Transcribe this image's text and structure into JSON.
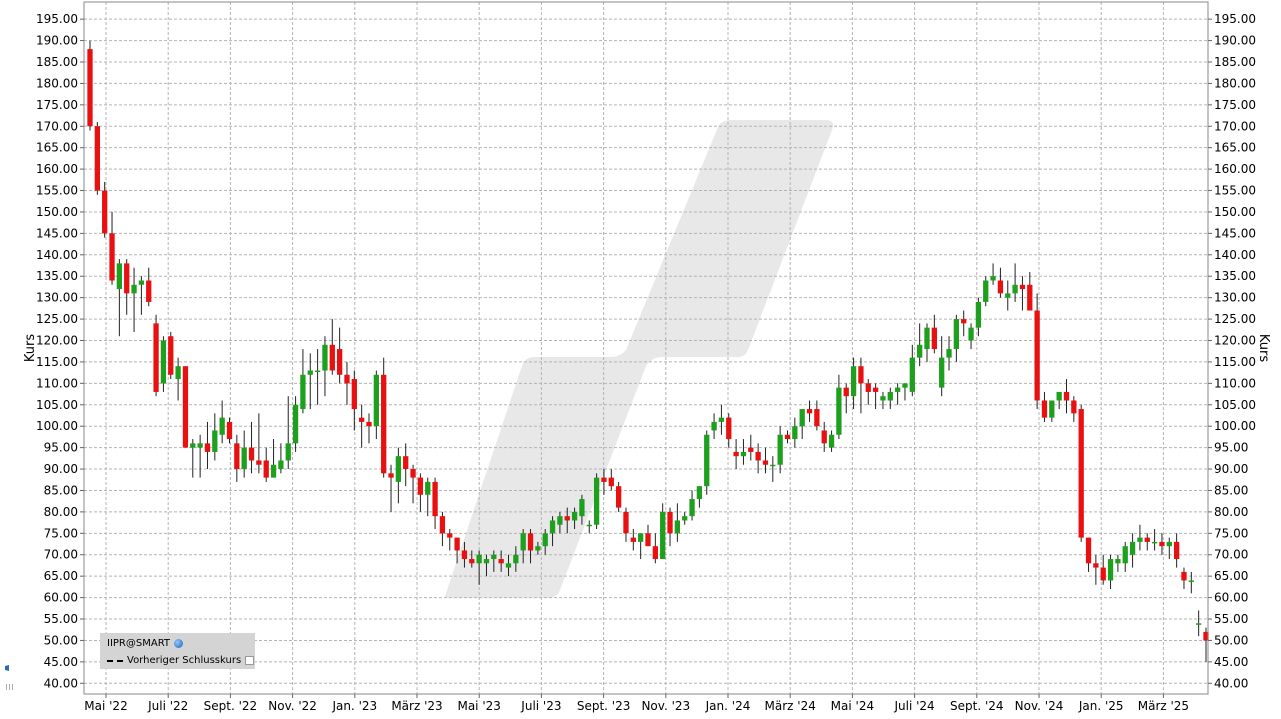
{
  "chart_data": {
    "type": "candlestick",
    "ylabel": "Kurs",
    "ylim": [
      37.5,
      199.0
    ],
    "y_ticks": [
      40,
      45,
      50,
      55,
      60,
      65,
      70,
      75,
      80,
      85,
      90,
      95,
      100,
      105,
      110,
      115,
      120,
      125,
      130,
      135,
      140,
      145,
      150,
      155,
      160,
      165,
      170,
      175,
      180,
      185,
      190,
      195
    ],
    "x_tick_labels": [
      "Mai '22",
      "Juli '22",
      "Sept. '22",
      "Nov. '22",
      "Jan. '23",
      "März '23",
      "Mai '23",
      "Juli '23",
      "Sept. '23",
      "Nov. '23",
      "Jan. '24",
      "März '24",
      "Mai '24",
      "Juli '24",
      "Sept. '24",
      "Nov. '24",
      "Jan. '25",
      "März '25"
    ],
    "grid": true,
    "colors": {
      "up": "#1ea01e",
      "down": "#e81010",
      "grid": "#b4b4b4",
      "background": "#ffffff",
      "watermark": "#e8e8e8"
    },
    "series": [
      {
        "name": "IIPR@SMART",
        "ohlc": [
          [
            188,
            190,
            169,
            170
          ],
          [
            170,
            171,
            154,
            155
          ],
          [
            155,
            157,
            144,
            145
          ],
          [
            145,
            150,
            133,
            134
          ],
          [
            132,
            139,
            121,
            138
          ],
          [
            138,
            139,
            126,
            131
          ],
          [
            131,
            137,
            122,
            133
          ],
          [
            133,
            135,
            126,
            134
          ],
          [
            134,
            137,
            128,
            129
          ],
          [
            124,
            126,
            107,
            108
          ],
          [
            110,
            121,
            108,
            120
          ],
          [
            121,
            122,
            111,
            112
          ],
          [
            111,
            116,
            106,
            114
          ],
          [
            114,
            114,
            95,
            95
          ],
          [
            95,
            97,
            88,
            96
          ],
          [
            95,
            98,
            88,
            96
          ],
          [
            96,
            101,
            90,
            94
          ],
          [
            94,
            103,
            92,
            99
          ],
          [
            98,
            106,
            96,
            102
          ],
          [
            101,
            102,
            96,
            97
          ],
          [
            96,
            98,
            87,
            90
          ],
          [
            90,
            99,
            88,
            95
          ],
          [
            95,
            101,
            89,
            92
          ],
          [
            92,
            103,
            89,
            91
          ],
          [
            92,
            95,
            87,
            88
          ],
          [
            88,
            97,
            88,
            91
          ],
          [
            90,
            96,
            89,
            92
          ],
          [
            92,
            107,
            90,
            96
          ],
          [
            96,
            107,
            94,
            105
          ],
          [
            104,
            118,
            103,
            112
          ],
          [
            112,
            117,
            104,
            113
          ],
          [
            113,
            118,
            105,
            113
          ],
          [
            113,
            121,
            107,
            119
          ],
          [
            119,
            125,
            112,
            113
          ],
          [
            118,
            123,
            110,
            112
          ],
          [
            112,
            115,
            105,
            110
          ],
          [
            111,
            113,
            99,
            104
          ],
          [
            102,
            105,
            95,
            101
          ],
          [
            101,
            103,
            96,
            100
          ],
          [
            100,
            113,
            97,
            112
          ],
          [
            112,
            116,
            88,
            89
          ],
          [
            89,
            91,
            80,
            88
          ],
          [
            87,
            95,
            82,
            93
          ],
          [
            93,
            96,
            86,
            90
          ],
          [
            90,
            91,
            82,
            88
          ],
          [
            88,
            89,
            80,
            84
          ],
          [
            84,
            88,
            79,
            87
          ],
          [
            87,
            88,
            76,
            79
          ],
          [
            79,
            80,
            72,
            75
          ],
          [
            75,
            76,
            71,
            74
          ],
          [
            74,
            74,
            68,
            71
          ],
          [
            71,
            73,
            67,
            69
          ],
          [
            69,
            71,
            67,
            68
          ],
          [
            68,
            71,
            63,
            70
          ],
          [
            68,
            70,
            65,
            69
          ],
          [
            69,
            71,
            66,
            70
          ],
          [
            69,
            71,
            66,
            68
          ],
          [
            67,
            70,
            65,
            68
          ],
          [
            68,
            72,
            66,
            70
          ],
          [
            71,
            76,
            68,
            75
          ],
          [
            75,
            76,
            68,
            71
          ],
          [
            71,
            73,
            70,
            72
          ],
          [
            72,
            76,
            70,
            75
          ],
          [
            75,
            79,
            72,
            78
          ],
          [
            77,
            80,
            75,
            79
          ],
          [
            79,
            81,
            75,
            78
          ],
          [
            78,
            81,
            76,
            80
          ],
          [
            79,
            84,
            77,
            83
          ],
          [
            77,
            78,
            75,
            77
          ],
          [
            77,
            89,
            76,
            88
          ],
          [
            88,
            90,
            84,
            87
          ],
          [
            88,
            90,
            85,
            86
          ],
          [
            86,
            87,
            80,
            81
          ],
          [
            80,
            81,
            73,
            75
          ],
          [
            74,
            76,
            71,
            73
          ],
          [
            73,
            75,
            69,
            75
          ],
          [
            75,
            77,
            72,
            72
          ],
          [
            72,
            75,
            68,
            69
          ],
          [
            69,
            82,
            69,
            80
          ],
          [
            80,
            81,
            72,
            75
          ],
          [
            75,
            82,
            73,
            78
          ],
          [
            78,
            80,
            77,
            79
          ],
          [
            79,
            85,
            78,
            83
          ],
          [
            83,
            86,
            81,
            86
          ],
          [
            86,
            99,
            84,
            98
          ],
          [
            99,
            103,
            97,
            101
          ],
          [
            101,
            105,
            98,
            102
          ],
          [
            102,
            103,
            95,
            97
          ],
          [
            94,
            97,
            90,
            93
          ],
          [
            93,
            97,
            91,
            94
          ],
          [
            95,
            98,
            92,
            94
          ],
          [
            94,
            96,
            89,
            92
          ],
          [
            92,
            95,
            89,
            91
          ],
          [
            91,
            93,
            87,
            91
          ],
          [
            91,
            100,
            89,
            98
          ],
          [
            98,
            99,
            96,
            97
          ],
          [
            97,
            102,
            95,
            100
          ],
          [
            100,
            104,
            97,
            104
          ],
          [
            104,
            106,
            101,
            103
          ],
          [
            104,
            106,
            99,
            100
          ],
          [
            99,
            101,
            94,
            96
          ],
          [
            95,
            99,
            94,
            98
          ],
          [
            98,
            112,
            97,
            109
          ],
          [
            109,
            110,
            103,
            107
          ],
          [
            107,
            116,
            104,
            114
          ],
          [
            114,
            116,
            103,
            110
          ],
          [
            110,
            111,
            105,
            108
          ],
          [
            109,
            110,
            104,
            108
          ],
          [
            106,
            108,
            104,
            107
          ],
          [
            106,
            109,
            104,
            108
          ],
          [
            108,
            110,
            105,
            109
          ],
          [
            109,
            110,
            106,
            110
          ],
          [
            108,
            119,
            107,
            116
          ],
          [
            116,
            124,
            114,
            119
          ],
          [
            118,
            124,
            115,
            123
          ],
          [
            123,
            126,
            117,
            118
          ],
          [
            109,
            121,
            107,
            116
          ],
          [
            116,
            121,
            113,
            118
          ],
          [
            118,
            126,
            115,
            125
          ],
          [
            125,
            127,
            121,
            124
          ],
          [
            120,
            124,
            118,
            123
          ],
          [
            123,
            130,
            121,
            129
          ],
          [
            129,
            135,
            128,
            134
          ],
          [
            134,
            138,
            133,
            135
          ],
          [
            134,
            137,
            130,
            131
          ],
          [
            130,
            134,
            127,
            131
          ],
          [
            131,
            138,
            129,
            133
          ],
          [
            133,
            135,
            127,
            132
          ],
          [
            133,
            136,
            128,
            127
          ],
          [
            127,
            131,
            104,
            106
          ],
          [
            106,
            108,
            101,
            102
          ],
          [
            102,
            106,
            101,
            106
          ],
          [
            106,
            108,
            104,
            108
          ],
          [
            108,
            111,
            103,
            106
          ],
          [
            106,
            107,
            101,
            103
          ],
          [
            104,
            105,
            73,
            74
          ],
          [
            74,
            73,
            66,
            68
          ],
          [
            68,
            70,
            63,
            67
          ],
          [
            67,
            70,
            63,
            64
          ],
          [
            64,
            70,
            62,
            69
          ],
          [
            68,
            70,
            66,
            69
          ],
          [
            68,
            73,
            66,
            72
          ],
          [
            70,
            75,
            67,
            73
          ],
          [
            73,
            77,
            71,
            74
          ],
          [
            74,
            75,
            71,
            73
          ],
          [
            73,
            76,
            71,
            73
          ],
          [
            73,
            75,
            70,
            72
          ],
          [
            72,
            74,
            69,
            73
          ],
          [
            73,
            75,
            67,
            69
          ],
          [
            66,
            67,
            62,
            64
          ],
          [
            64,
            66,
            61,
            64
          ],
          [
            54,
            57,
            51,
            54
          ],
          [
            52,
            53,
            45,
            50
          ]
        ]
      }
    ],
    "legend": [
      {
        "label": "IIPR@SMART",
        "marker": "globe-icon"
      },
      {
        "label": "Vorheriger Schlusskurs",
        "marker": "dashed-line"
      }
    ]
  }
}
